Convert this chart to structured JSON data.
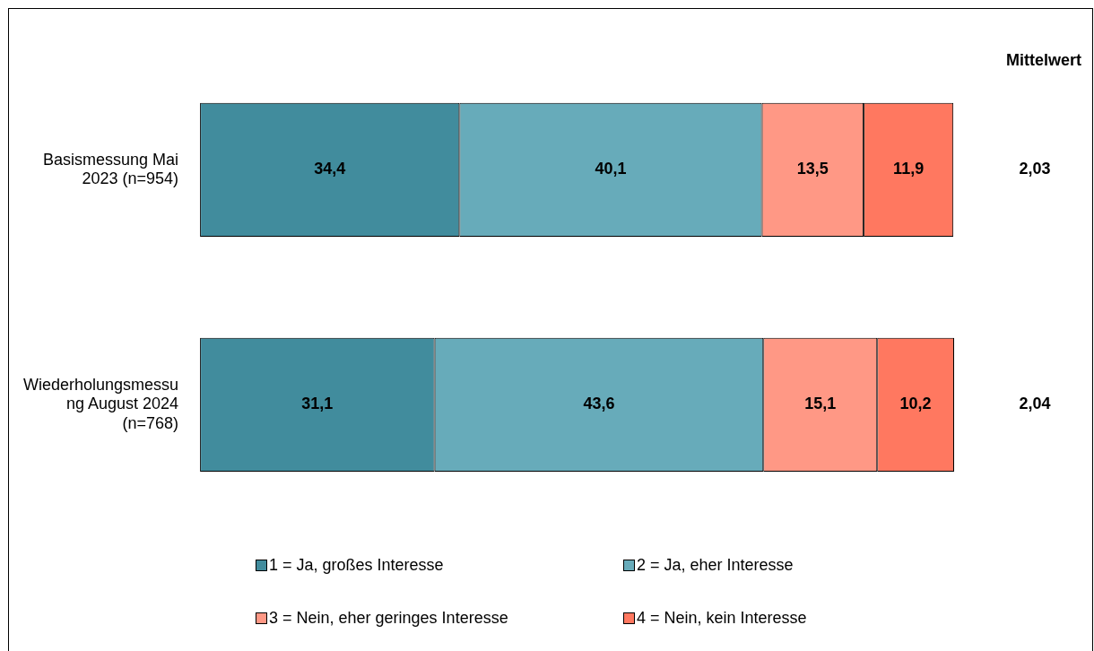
{
  "chart_data": {
    "type": "bar",
    "orientation": "horizontal",
    "stacked": true,
    "categories": [
      "Basismessung Mai 2023 (n=954)",
      "Wiederholungsmessung August 2024 (n=768)"
    ],
    "series": [
      {
        "name": "1 = Ja, großes Interesse",
        "color": "#418c9d",
        "values": [
          34.4,
          31.1
        ],
        "value_labels": [
          "34,4",
          "31,1"
        ]
      },
      {
        "name": "2 = Ja, eher Interesse",
        "color": "#67abba",
        "values": [
          40.1,
          43.6
        ],
        "value_labels": [
          "40,1",
          "43,6"
        ]
      },
      {
        "name": "3 = Nein, eher geringes Interesse",
        "color": "#ff9885",
        "values": [
          13.5,
          15.1
        ],
        "value_labels": [
          "13,5",
          "15,1"
        ]
      },
      {
        "name": "4 = Nein, kein Interesse",
        "color": "#ff7860",
        "values": [
          11.9,
          10.2
        ],
        "value_labels": [
          "11,9",
          "10,2"
        ]
      }
    ],
    "tick_labels": "y",
    "legend": "bottom",
    "annotations": [
      "Mittelwert",
      "2,03",
      "2,04"
    ]
  }
}
